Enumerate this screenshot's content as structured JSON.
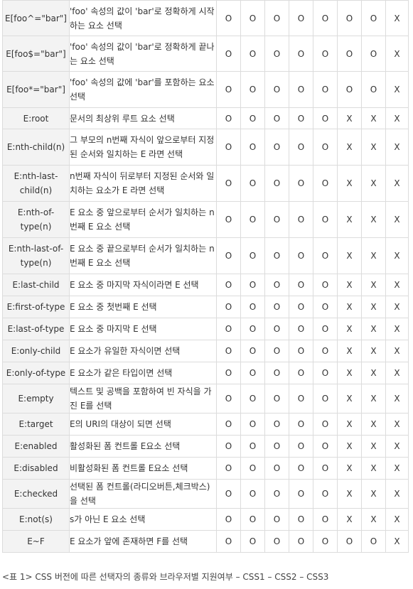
{
  "rows": [
    {
      "selector": "E[foo^=\"bar\"]",
      "description": "'foo' 속성의 값이 'bar'로 정확하게 시작하는 요소 선택",
      "support": [
        "O",
        "O",
        "O",
        "O",
        "O",
        "O",
        "O",
        "X"
      ]
    },
    {
      "selector": "E[foo$=\"bar\"]",
      "description": "'foo' 속성의 값이 'bar'로 정확하게 끝나는 요소 선택",
      "support": [
        "O",
        "O",
        "O",
        "O",
        "O",
        "O",
        "O",
        "X"
      ]
    },
    {
      "selector": "E[foo*=\"bar\"]",
      "description": "'foo' 속성의 값에 'bar'를 포함하는 요소 선택",
      "support": [
        "O",
        "O",
        "O",
        "O",
        "O",
        "O",
        "O",
        "X"
      ]
    },
    {
      "selector": "E:root",
      "description": "문서의 최상위 루트 요소 선택",
      "support": [
        "O",
        "O",
        "O",
        "O",
        "O",
        "X",
        "X",
        "X"
      ]
    },
    {
      "selector": "E:nth-child(n)",
      "description": "그 부모의 n번째 자식이 앞으로부터 지정된 순서와 일치하는 E 라면 선택",
      "support": [
        "O",
        "O",
        "O",
        "O",
        "O",
        "X",
        "X",
        "X"
      ]
    },
    {
      "selector": "E:nth-last-child(n)",
      "description": "n번째 자식이 뒤로부터 지정된 순서와 일치하는 요소가 E 라면 선택",
      "support": [
        "O",
        "O",
        "O",
        "O",
        "O",
        "X",
        "X",
        "X"
      ]
    },
    {
      "selector": "E:nth-of-type(n)",
      "description": "E 요소 중 앞으로부터 순서가 일치하는 n번째 E 요소 선택",
      "support": [
        "O",
        "O",
        "O",
        "O",
        "O",
        "X",
        "X",
        "X"
      ]
    },
    {
      "selector": "E:nth-last-of-type(n)",
      "description": "E 요소 중 끝으로부터 순서가 일치하는 n번째 E 요소 선택",
      "support": [
        "O",
        "O",
        "O",
        "O",
        "O",
        "X",
        "X",
        "X"
      ]
    },
    {
      "selector": "E:last-child",
      "description": "E 요소 중 마지막 자식이라면 E 선택",
      "support": [
        "O",
        "O",
        "O",
        "O",
        "O",
        "X",
        "X",
        "X"
      ]
    },
    {
      "selector": "E:first-of-type",
      "description": "E 요소 중 첫번째 E 선택",
      "support": [
        "O",
        "O",
        "O",
        "O",
        "O",
        "X",
        "X",
        "X"
      ]
    },
    {
      "selector": "E:last-of-type",
      "description": "E 요소 중 마지막 E 선택",
      "support": [
        "O",
        "O",
        "O",
        "O",
        "O",
        "X",
        "X",
        "X"
      ]
    },
    {
      "selector": "E:only-child",
      "description": "E 요소가 유일한 자식이면 선택",
      "support": [
        "O",
        "O",
        "O",
        "O",
        "O",
        "X",
        "X",
        "X"
      ]
    },
    {
      "selector": "E:only-of-type",
      "description": "E 요소가 같은 타입이면 선택",
      "support": [
        "O",
        "O",
        "O",
        "O",
        "O",
        "X",
        "X",
        "X"
      ]
    },
    {
      "selector": "E:empty",
      "description": "텍스트 및 공백을 포함하여 빈 자식을 가진 E를 선택",
      "support": [
        "O",
        "O",
        "O",
        "O",
        "O",
        "X",
        "X",
        "X"
      ]
    },
    {
      "selector": "E:target",
      "description": "E의 URI의 대상이 되면 선택",
      "support": [
        "O",
        "O",
        "O",
        "O",
        "O",
        "X",
        "X",
        "X"
      ]
    },
    {
      "selector": "E:enabled",
      "description": "활성화된 폼 컨트롤 E요소 선택",
      "support": [
        "O",
        "O",
        "O",
        "O",
        "O",
        "X",
        "X",
        "X"
      ]
    },
    {
      "selector": "E:disabled",
      "description": "비활성화된 폼 컨트롤 E요소 선택",
      "support": [
        "O",
        "O",
        "O",
        "O",
        "O",
        "X",
        "X",
        "X"
      ]
    },
    {
      "selector": "E:checked",
      "description": "선택된 폼 컨트롤(라디오버튼,체크박스)을 선택",
      "support": [
        "O",
        "O",
        "O",
        "O",
        "O",
        "X",
        "X",
        "X"
      ]
    },
    {
      "selector": "E:not(s)",
      "description": "s가 아닌 E 요소 선택",
      "support": [
        "O",
        "O",
        "O",
        "O",
        "O",
        "X",
        "X",
        "X"
      ]
    },
    {
      "selector": "E~F",
      "description": "E 요소가 앞에 존재하면 F를 선택",
      "support": [
        "O",
        "O",
        "O",
        "O",
        "O",
        "O",
        "O",
        "X"
      ]
    }
  ],
  "caption": "<표 1> CSS 버전에 따른 선택자의 종류와 브라우저별 지원여부 – CSS1 – CSS2 – CSS3"
}
